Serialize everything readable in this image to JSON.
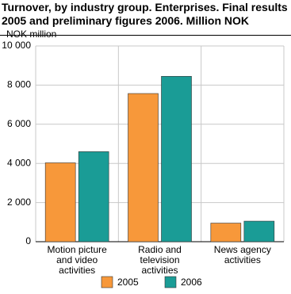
{
  "chart_data": {
    "type": "bar",
    "title": "Turnover, by industry group. Enterprises. Final results 2005 and preliminary figures 2006. Million NOK",
    "y_label": "NOK million",
    "categories": [
      "Motion picture and video activities",
      "Radio and television activities",
      "News agency activities"
    ],
    "series": [
      {
        "name": "2005",
        "color": "#f7983a",
        "values": [
          4030,
          7570,
          950
        ]
      },
      {
        "name": "2006",
        "color": "#1a9c96",
        "values": [
          4600,
          8450,
          1050
        ]
      }
    ],
    "ylim": [
      0,
      10000
    ],
    "yticks": [
      0,
      {
        "value": 2000,
        "label": "2 000"
      },
      {
        "value": 4000,
        "label": "4 000"
      },
      {
        "value": 6000,
        "label": "6 000"
      },
      {
        "value": 8000,
        "label": "8 000"
      },
      {
        "value": 10000,
        "label": "10 000"
      }
    ],
    "grid": true,
    "legend": "bottom"
  }
}
